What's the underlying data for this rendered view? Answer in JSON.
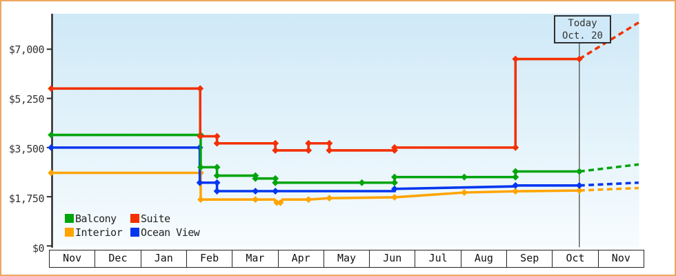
{
  "page": {
    "frame_border_color": "#eca75f",
    "plot_bg_top": "#cfe9f7",
    "plot_bg_bottom": "#f7fcfe",
    "axis_color": "#2e2e2e"
  },
  "chart_data": {
    "type": "line",
    "description": "Cruise cabin price history by category with dashed forecast after today",
    "y_axis": {
      "ticks": [
        {
          "label": "$7,000",
          "value": 7000
        },
        {
          "label": "$5,250",
          "value": 5250
        },
        {
          "label": "$3,500",
          "value": 3500
        },
        {
          "label": "$1,750",
          "value": 1750
        },
        {
          "label": "$0",
          "value": 0
        }
      ]
    },
    "x_axis": {
      "unit": "months",
      "months": [
        "Nov",
        "Dec",
        "Jan",
        "Feb",
        "Mar",
        "Apr",
        "May",
        "Jun",
        "Jul",
        "Aug",
        "Sep",
        "Oct",
        "Nov"
      ]
    },
    "today_marker": {
      "line1": "Today",
      "line2": "Oct. 20",
      "position_months_from_start": 11.66
    },
    "legend": [
      {
        "label": "Balcony",
        "color": "#00a40c"
      },
      {
        "label": "Suite",
        "color": "#f23000"
      },
      {
        "label": "Interior",
        "color": "#ffa400"
      },
      {
        "label": "Ocean View",
        "color": "#0336ee"
      }
    ],
    "series": [
      {
        "name": "Interior",
        "color": "#ffa400",
        "points": [
          [
            0,
            2600
          ],
          [
            3.3,
            2600
          ],
          [
            3.3,
            1650
          ],
          [
            4.93,
            1650
          ],
          [
            4.96,
            1540
          ],
          [
            5.08,
            1540
          ],
          [
            5.11,
            1650
          ],
          [
            5.68,
            1650
          ],
          [
            6.14,
            1700
          ],
          [
            7.58,
            1730
          ],
          [
            9.12,
            1900
          ],
          [
            10.25,
            1945
          ],
          [
            11.66,
            1970
          ]
        ],
        "markers": [
          [
            0,
            2600
          ],
          [
            3.3,
            2600
          ],
          [
            3.3,
            1650
          ],
          [
            4.51,
            1650
          ],
          [
            4.98,
            1540
          ],
          [
            5.06,
            1540
          ],
          [
            5.68,
            1650
          ],
          [
            6.14,
            1700
          ],
          [
            7.58,
            1730
          ],
          [
            9.12,
            1900
          ],
          [
            10.25,
            1945
          ],
          [
            11.66,
            1970
          ]
        ],
        "forecast": [
          [
            11.66,
            1970
          ],
          [
            12.97,
            2060
          ]
        ]
      },
      {
        "name": "Ocean View",
        "color": "#0336ee",
        "points": [
          [
            0,
            3500
          ],
          [
            3.28,
            3500
          ],
          [
            3.28,
            2250
          ],
          [
            3.66,
            2250
          ],
          [
            3.66,
            1950
          ],
          [
            7.58,
            1950
          ],
          [
            7.58,
            2030
          ],
          [
            10.25,
            2120
          ],
          [
            10.25,
            2150
          ],
          [
            11.66,
            2150
          ]
        ],
        "markers": [
          [
            0,
            3500
          ],
          [
            3.28,
            3500
          ],
          [
            3.28,
            2250
          ],
          [
            3.66,
            2250
          ],
          [
            3.66,
            1950
          ],
          [
            4.51,
            1950
          ],
          [
            4.95,
            1950
          ],
          [
            7.58,
            2030
          ],
          [
            10.25,
            2150
          ],
          [
            11.66,
            2150
          ]
        ],
        "forecast": [
          [
            11.66,
            2150
          ],
          [
            12.97,
            2250
          ]
        ]
      },
      {
        "name": "Balcony",
        "color": "#00a40c",
        "points": [
          [
            0,
            3950
          ],
          [
            3.3,
            3950
          ],
          [
            3.3,
            2800
          ],
          [
            3.66,
            2800
          ],
          [
            3.66,
            2500
          ],
          [
            4.51,
            2500
          ],
          [
            4.51,
            2400
          ],
          [
            4.95,
            2400
          ],
          [
            4.95,
            2250
          ],
          [
            7.58,
            2250
          ],
          [
            7.58,
            2450
          ],
          [
            10.25,
            2450
          ],
          [
            10.25,
            2650
          ],
          [
            11.66,
            2650
          ]
        ],
        "markers": [
          [
            0,
            3950
          ],
          [
            3.3,
            3950
          ],
          [
            3.3,
            2800
          ],
          [
            3.66,
            2800
          ],
          [
            3.66,
            2500
          ],
          [
            4.51,
            2500
          ],
          [
            4.51,
            2400
          ],
          [
            4.95,
            2400
          ],
          [
            4.95,
            2250
          ],
          [
            6.86,
            2250
          ],
          [
            7.58,
            2250
          ],
          [
            7.58,
            2450
          ],
          [
            9.12,
            2450
          ],
          [
            10.25,
            2450
          ],
          [
            10.25,
            2650
          ],
          [
            11.66,
            2650
          ]
        ],
        "forecast": [
          [
            11.66,
            2650
          ],
          [
            12.97,
            2900
          ]
        ]
      },
      {
        "name": "Suite",
        "color": "#f23000",
        "points": [
          [
            0,
            5600
          ],
          [
            3.29,
            5600
          ],
          [
            3.29,
            3900
          ],
          [
            3.66,
            3900
          ],
          [
            3.66,
            3650
          ],
          [
            4.95,
            3650
          ],
          [
            4.95,
            3400
          ],
          [
            5.68,
            3400
          ],
          [
            5.68,
            3650
          ],
          [
            6.14,
            3650
          ],
          [
            6.14,
            3400
          ],
          [
            7.58,
            3400
          ],
          [
            7.58,
            3500
          ],
          [
            10.25,
            3500
          ],
          [
            10.25,
            6650
          ],
          [
            11.66,
            6650
          ]
        ],
        "markers": [
          [
            0,
            5600
          ],
          [
            3.29,
            5600
          ],
          [
            3.29,
            3900
          ],
          [
            3.66,
            3900
          ],
          [
            3.66,
            3650
          ],
          [
            4.95,
            3650
          ],
          [
            4.95,
            3400
          ],
          [
            5.68,
            3400
          ],
          [
            5.68,
            3650
          ],
          [
            6.14,
            3650
          ],
          [
            6.14,
            3400
          ],
          [
            7.58,
            3400
          ],
          [
            7.58,
            3500
          ],
          [
            10.25,
            3500
          ],
          [
            10.25,
            6650
          ],
          [
            11.66,
            6650
          ]
        ],
        "forecast": [
          [
            11.66,
            6650
          ],
          [
            12.97,
            7950
          ]
        ]
      }
    ]
  }
}
